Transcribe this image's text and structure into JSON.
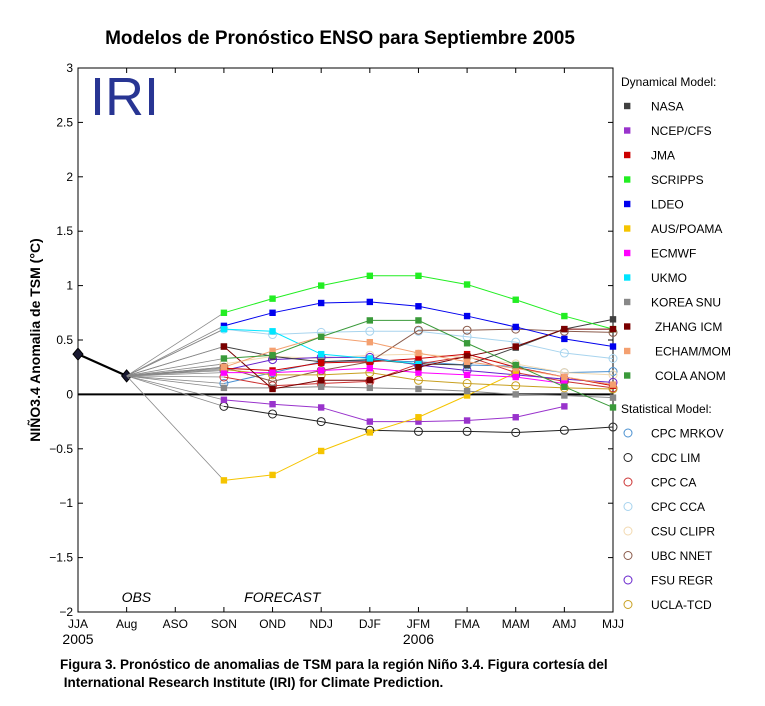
{
  "chart_data": {
    "type": "line",
    "title": "Modelos de Pronóstico ENSO para Septiembre 2005",
    "ylabel": "NIÑO3.4 Anomalia de TSM (°C)",
    "xlabel": "",
    "ylim": [
      -2,
      3
    ],
    "yticks": [
      "−2",
      "−1.5",
      "−1",
      "−0.5",
      "0",
      "0.5",
      "1",
      "1.5",
      "2",
      "2.5",
      "3"
    ],
    "categories": [
      "JJA",
      "Aug",
      "ASO",
      "SON",
      "OND",
      "NDJ",
      "DJF",
      "JFM",
      "FMA",
      "MAM",
      "AMJ",
      "MJJ"
    ],
    "year_labels": [
      {
        "label": "2005",
        "index": 0
      },
      {
        "label": "2006",
        "index": 7
      }
    ],
    "region_labels": [
      {
        "label": "OBS",
        "index": 1.2
      },
      {
        "label": "FORECAST",
        "index": 4.2
      }
    ],
    "logo": "IRI",
    "zero_line": true,
    "grid": false,
    "legend_placement": "right",
    "observed": {
      "name": "OBS",
      "values": [
        0.37,
        0.17
      ]
    },
    "legend_headers": {
      "dynamical": "Dynamical Model:",
      "statistical": "Statistical Model:"
    },
    "dynamical": [
      {
        "name": "NASA",
        "color": "#404040",
        "values": [
          0.44,
          0.35,
          0.3,
          0.32,
          0.28,
          0.27,
          0.43,
          0.6,
          0.69
        ]
      },
      {
        "name": "NCEP/CFS",
        "color": "#9933cc",
        "values": [
          -0.05,
          -0.09,
          -0.12,
          -0.25,
          -0.25,
          -0.24,
          -0.21,
          -0.11,
          null
        ]
      },
      {
        "name": "JMA",
        "color": "#cc0000",
        "values": [
          0.24,
          0.22,
          0.29,
          0.3,
          0.33,
          0.37,
          0.25,
          0.16,
          0.08
        ]
      },
      {
        "name": "SCRIPPS",
        "color": "#22ee22",
        "values": [
          0.75,
          0.88,
          1.0,
          1.09,
          1.09,
          1.01,
          0.87,
          0.72,
          0.6
        ]
      },
      {
        "name": "LDEO",
        "color": "#0000ee",
        "values": [
          0.63,
          0.75,
          0.84,
          0.85,
          0.81,
          0.72,
          0.62,
          0.51,
          0.44
        ]
      },
      {
        "name": "AUS/POAMA",
        "color": "#f5c400",
        "values": [
          -0.79,
          -0.74,
          -0.52,
          -0.35,
          -0.21,
          -0.01,
          0.2,
          null,
          null
        ]
      },
      {
        "name": "ECMWF",
        "color": "#ff00ff",
        "values": [
          0.2,
          0.2,
          0.22,
          0.24,
          0.2,
          0.18,
          0.16,
          0.1,
          null
        ]
      },
      {
        "name": "UKMO",
        "color": "#00e5ff",
        "values": [
          0.6,
          0.58,
          0.37,
          0.33,
          0.28,
          null,
          null,
          null,
          null
        ]
      },
      {
        "name": "KOREA SNU",
        "color": "#888888",
        "values": [
          0.06,
          0.06,
          0.07,
          0.06,
          0.05,
          0.03,
          0.0,
          -0.01,
          -0.03
        ]
      },
      {
        "name": "ZHANG ICM",
        "color": "#7a0000",
        "values": [
          0.44,
          0.05,
          0.13,
          0.13,
          0.25,
          0.35,
          0.44,
          0.6,
          0.6
        ]
      },
      {
        "name": "ECHAM/MOM",
        "color": "#f4a070",
        "values": [
          0.25,
          0.4,
          0.53,
          0.48,
          0.38,
          0.3,
          0.24,
          0.16,
          0.09
        ]
      },
      {
        "name": "COLA ANOM",
        "color": "#3a9a3a",
        "values": [
          0.33,
          0.36,
          0.53,
          0.68,
          0.68,
          0.47,
          0.27,
          0.07,
          -0.12
        ]
      }
    ],
    "statistical": [
      {
        "name": "CPC MRKOV",
        "color": "#4a90d0",
        "values": [
          0.1,
          0.2,
          0.3,
          0.31,
          0.3,
          0.27,
          0.26,
          0.2,
          0.21
        ]
      },
      {
        "name": "CDC LIM",
        "color": "#222222",
        "values": [
          -0.11,
          -0.18,
          -0.25,
          -0.33,
          -0.34,
          -0.34,
          -0.35,
          -0.33,
          -0.3
        ]
      },
      {
        "name": "CPC CA",
        "color": "#cc3333",
        "values": [
          0.16,
          0.08,
          0.1,
          0.12,
          0.28,
          0.35,
          0.2,
          0.12,
          0.06
        ]
      },
      {
        "name": "CPC CCA",
        "color": "#a8d4ee",
        "values": [
          0.6,
          0.55,
          0.57,
          0.58,
          0.58,
          0.53,
          0.48,
          0.38,
          0.33
        ]
      },
      {
        "name": "CSU CLIPR",
        "color": "#f2d9b0",
        "values": [
          0.28,
          0.35,
          0.33,
          0.36,
          0.37,
          0.34,
          0.28,
          0.2,
          0.18
        ]
      },
      {
        "name": "UBC NNET",
        "color": "#8a5a4a",
        "values": [
          0.25,
          0.12,
          0.22,
          0.3,
          0.59,
          0.59,
          0.6,
          0.58,
          0.57
        ]
      },
      {
        "name": "FSU REGR",
        "color": "#6622cc",
        "values": [
          0.22,
          0.32,
          0.34,
          0.34,
          0.27,
          0.22,
          0.18,
          0.14,
          0.11
        ]
      },
      {
        "name": "UCLA-TCD",
        "color": "#c8a020",
        "values": [
          0.23,
          0.18,
          0.18,
          0.2,
          0.13,
          0.1,
          0.08,
          0.06,
          0.05
        ]
      }
    ]
  },
  "caption": {
    "line1": "Figura 3. Pronóstico de anomalias de TSM para la región Niño 3.4. Figura cortesía del",
    "line2": " International Research Institute (IRI) for Climate Prediction."
  }
}
